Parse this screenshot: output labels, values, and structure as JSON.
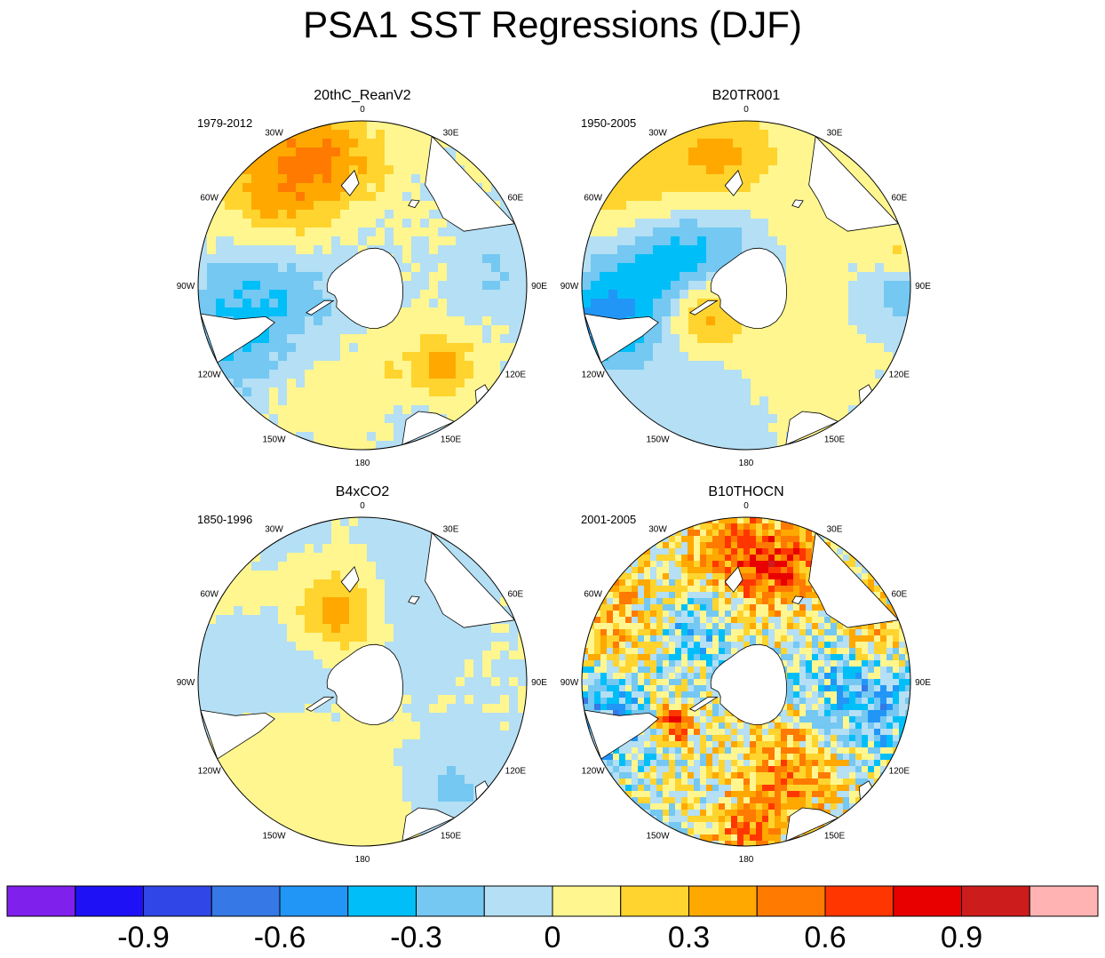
{
  "title": "PSA1 SST Regressions (DJF)",
  "colors": {
    "levels": [
      "#8020ec",
      "#1e11f5",
      "#3046e6",
      "#3578e6",
      "#2196f7",
      "#00bff8",
      "#74c8f2",
      "#b4dff4",
      "#fff690",
      "#ffd42e",
      "#ffa800",
      "#ff7a00",
      "#ff3600",
      "#e80000",
      "#cd1c1c",
      "#ffb3b3"
    ],
    "land": "#ffffff",
    "outline": "#000000"
  },
  "chart_data": {
    "type": "heatmap",
    "projection": "south-polar-stereographic",
    "panels": [
      {
        "id": "reanv2",
        "title": "20thC_ReanV2",
        "period": "1979-2012"
      },
      {
        "id": "b20tr001",
        "title": "B20TR001",
        "period": "1950-2005"
      },
      {
        "id": "b4xco2",
        "title": "B4xCO2",
        "period": "1850-1996"
      },
      {
        "id": "b10thocn",
        "title": "B10THOCN",
        "period": "2001-2005"
      }
    ],
    "longitude_labels": [
      "0",
      "30E",
      "60E",
      "90E",
      "120E",
      "150E",
      "180",
      "150W",
      "120W",
      "90W",
      "60W",
      "30W"
    ],
    "colorbar": {
      "labels": [
        "-0.9",
        "-0.6",
        "-0.3",
        "0",
        "0.3",
        "0.6",
        "0.9"
      ],
      "bounds": [
        -1.05,
        -0.9,
        -0.75,
        -0.6,
        -0.45,
        -0.3,
        -0.15,
        0,
        0.15,
        0.3,
        0.45,
        0.6,
        0.75,
        0.9,
        1.05
      ],
      "n_colors": 16
    }
  }
}
